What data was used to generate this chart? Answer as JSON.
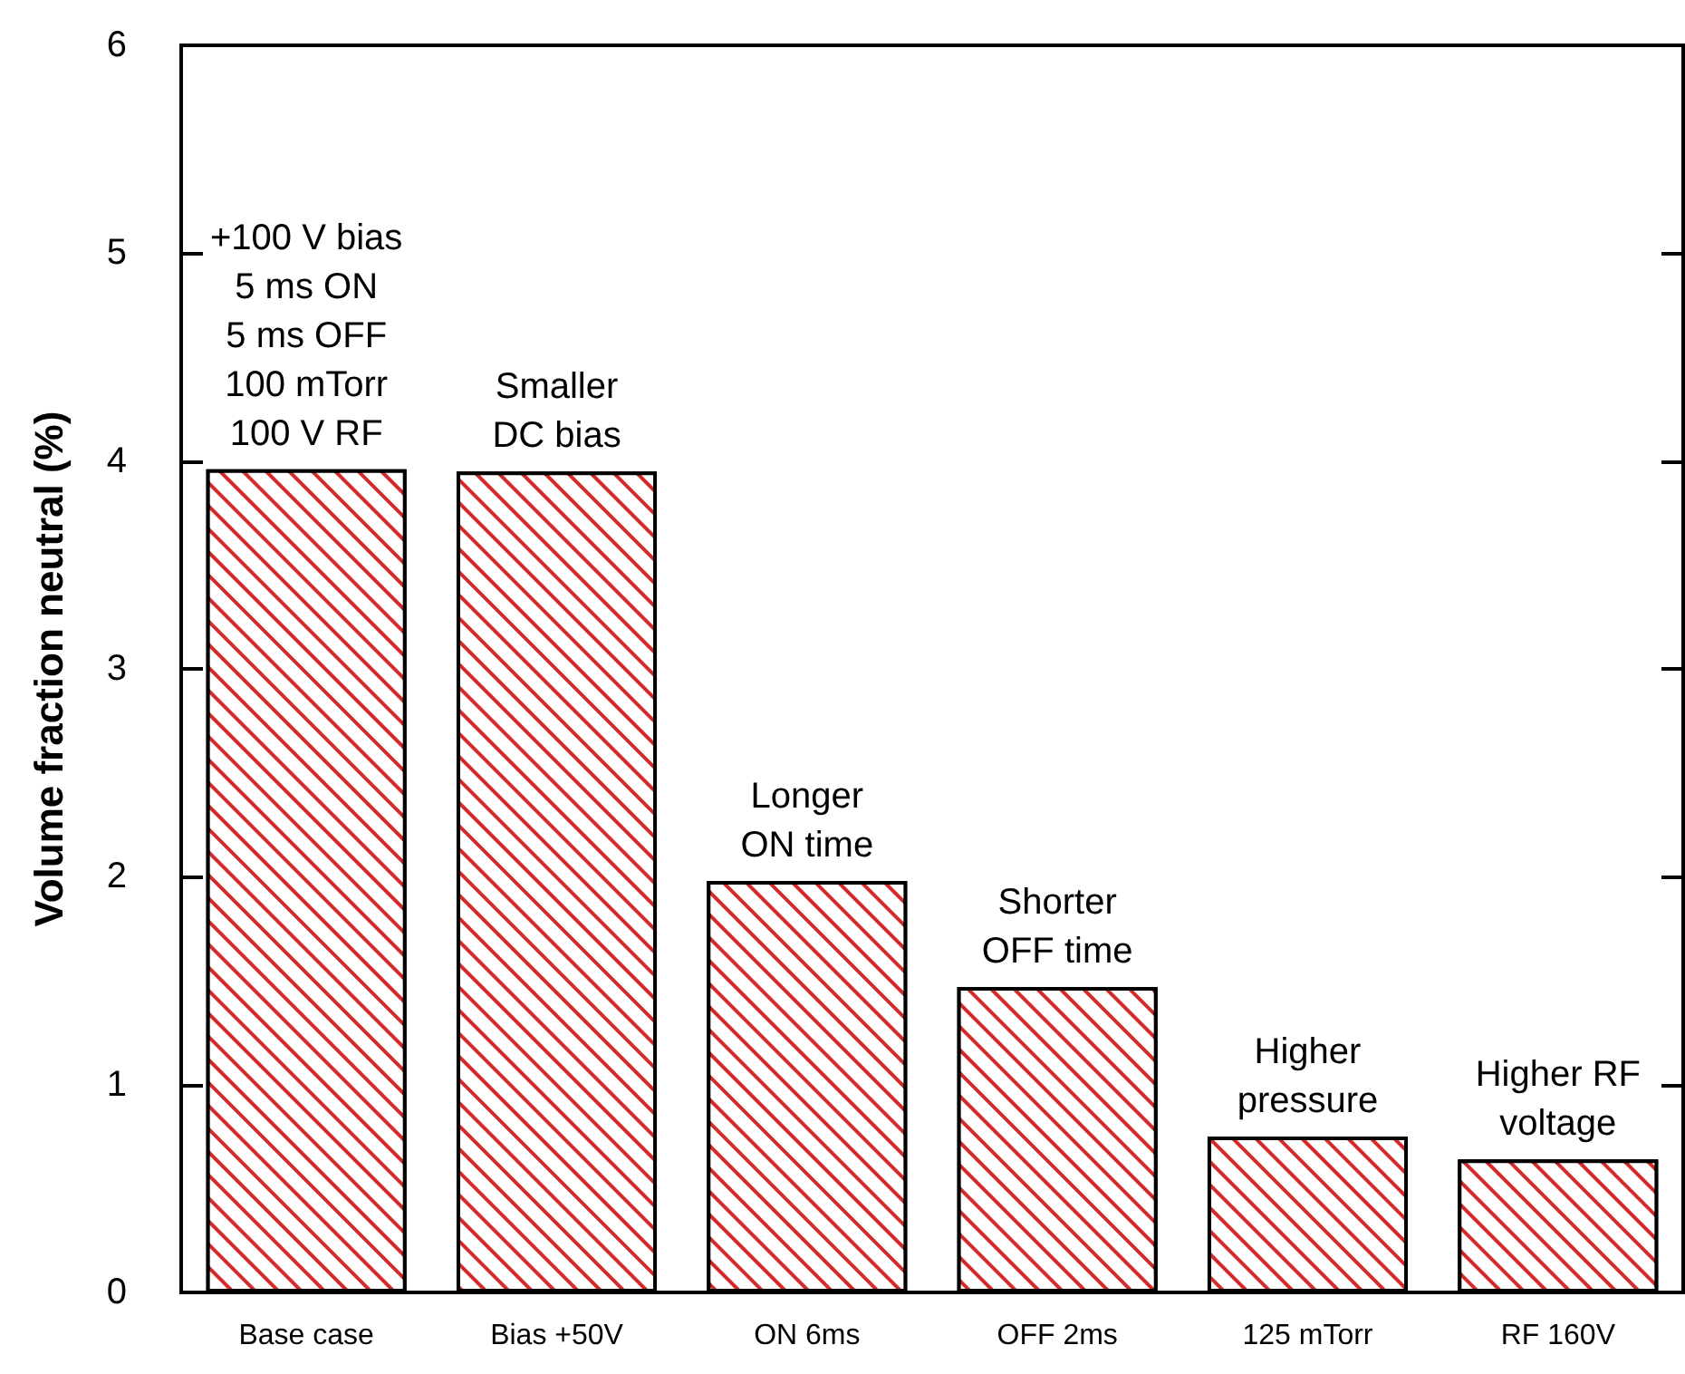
{
  "chart_data": {
    "type": "bar",
    "ylabel": "Volume fraction neutral (%)",
    "categories": [
      "Base case",
      "Bias +50V",
      "ON 6ms",
      "OFF 2ms",
      "125 mTorr",
      "RF 160V"
    ],
    "values": [
      3.96,
      3.95,
      1.98,
      1.47,
      0.75,
      0.64
    ],
    "color": "#d42a2a",
    "ylim": [
      0,
      6
    ],
    "yticks": [
      0,
      1,
      2,
      3,
      4,
      5,
      6
    ],
    "grid": false,
    "annotations": [
      {
        "text": "+100 V bias\n5 ms ON\n5 ms OFF\n100 mTorr\n100 V RF",
        "x": "Base case",
        "y": 3.96
      },
      {
        "text": "Smaller\nDC bias",
        "x": "Bias +50V",
        "y": 3.95
      },
      {
        "text": "Longer\nON time",
        "x": "ON 6ms",
        "y": 1.98
      },
      {
        "text": "Shorter\nOFF time",
        "x": "OFF 2ms",
        "y": 1.47
      },
      {
        "text": "Higher\npressure",
        "x": "125 mTorr",
        "y": 0.75
      },
      {
        "text": "Higher RF\nvoltage",
        "x": "RF 160V",
        "y": 0.64
      }
    ]
  }
}
